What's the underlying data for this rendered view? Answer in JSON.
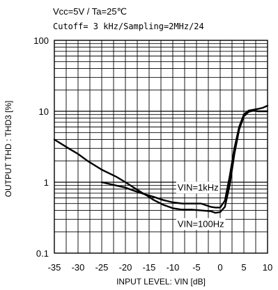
{
  "chart_data": {
    "type": "line",
    "title_line1": "Vcc=5V / Ta=25℃",
    "title_line2": "Cutoff= 3 kHz/Sampling=2MHz/24",
    "xlabel": "INPUT LEVEL: VIN [dB]",
    "ylabel": "OUTPUT THD : THD3 [%]",
    "xlim": [
      -35,
      10
    ],
    "ylim": [
      0.1,
      100
    ],
    "yscale": "log",
    "grid": true,
    "x_ticks": [
      -35,
      -30,
      -25,
      -20,
      -15,
      -10,
      -5,
      0,
      5,
      10
    ],
    "y_ticks": [
      {
        "value": 0.1,
        "label": "0.1"
      },
      {
        "value": 1,
        "label": "1"
      },
      {
        "value": 10,
        "label": "10"
      },
      {
        "value": 100,
        "label": "100"
      }
    ],
    "annotations": [
      {
        "text": "VIN=1kHz",
        "x": -9,
        "y": 0.85
      },
      {
        "text": "VIN=100Hz",
        "x": -9,
        "y": 0.26
      }
    ],
    "series": [
      {
        "name": "VIN=1kHz",
        "x": [
          -25,
          -22,
          -20,
          -18,
          -16,
          -14,
          -12,
          -10,
          -8,
          -6,
          -4,
          -2,
          -1,
          0,
          1,
          2,
          3,
          4,
          5,
          6,
          7,
          8,
          9,
          10
        ],
        "y": [
          1.0,
          0.9,
          0.84,
          0.75,
          0.68,
          0.62,
          0.56,
          0.52,
          0.5,
          0.5,
          0.5,
          0.45,
          0.44,
          0.44,
          0.55,
          1.2,
          3.0,
          6.0,
          9.0,
          10.2,
          10.5,
          10.8,
          11.2,
          12.0
        ]
      },
      {
        "name": "VIN=100Hz",
        "x": [
          -35,
          -32,
          -30,
          -28,
          -25,
          -22,
          -20,
          -18,
          -16,
          -15,
          -14,
          -12,
          -10,
          -8,
          -6,
          -4,
          -2,
          -1,
          0,
          1,
          2,
          3,
          4,
          5,
          6,
          7,
          8,
          9,
          10
        ],
        "y": [
          4.0,
          3.0,
          2.5,
          2.0,
          1.5,
          1.2,
          1.0,
          0.82,
          0.68,
          0.62,
          0.56,
          0.48,
          0.43,
          0.41,
          0.41,
          0.4,
          0.39,
          0.37,
          0.38,
          0.45,
          0.9,
          2.5,
          5.5,
          8.5,
          9.8,
          10.2,
          10.0,
          10.0,
          10.0
        ]
      }
    ]
  }
}
